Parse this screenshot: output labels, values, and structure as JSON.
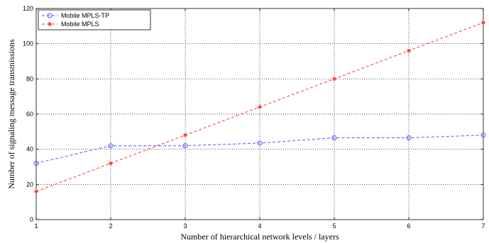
{
  "chart_data": {
    "type": "line",
    "title": "",
    "xlabel": "Number of hierarchical network levels / layers",
    "ylabel": "Number of signaling message transmissions",
    "x": [
      1,
      2,
      3,
      4,
      5,
      6,
      7
    ],
    "xlim": [
      1,
      7
    ],
    "ylim": [
      0,
      120
    ],
    "xticks": [
      1,
      2,
      3,
      4,
      5,
      6,
      7
    ],
    "yticks": [
      0,
      20,
      40,
      60,
      80,
      100,
      120
    ],
    "grid": true,
    "legend_position": "top-left",
    "series": [
      {
        "name": "Mobile MPLS-TP",
        "values": [
          32,
          42,
          42,
          43.5,
          46.5,
          46.5,
          48
        ],
        "color": "#5555ff",
        "marker": "circle",
        "line_style": "dashed"
      },
      {
        "name": "Mobile MPLS",
        "values": [
          16,
          32,
          48,
          64,
          80,
          96,
          112
        ],
        "color": "#ff3333",
        "marker": "star",
        "line_style": "dashed"
      }
    ]
  }
}
